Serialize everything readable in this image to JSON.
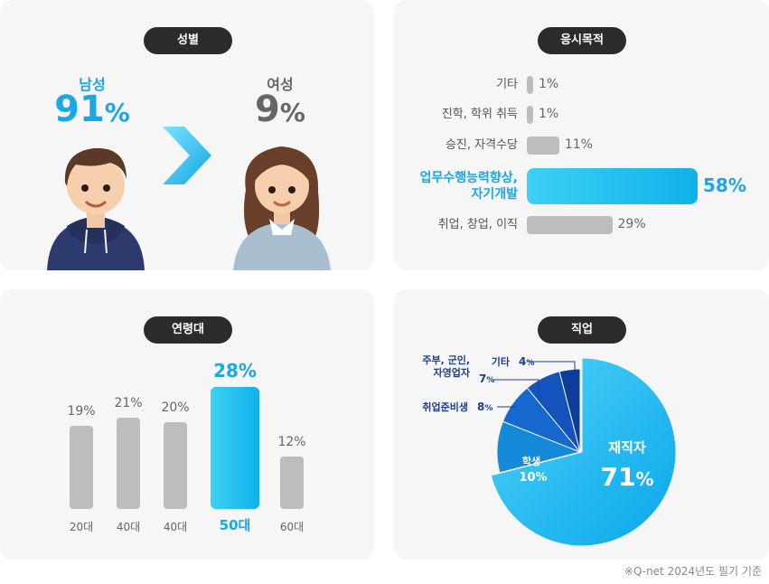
{
  "panels": {
    "gender": {
      "title": "성별",
      "male_label": "남성",
      "male_value": "91",
      "female_label": "여성",
      "female_value": "9",
      "unit": "%",
      "arrow_icon": "chevron-right-icon"
    },
    "purpose": {
      "title": "응시목적"
    },
    "age": {
      "title": "연령대"
    },
    "job": {
      "title": "직업"
    }
  },
  "footnote": "※Q-net 2024년도 필기 기준",
  "chart_data": [
    {
      "type": "bar",
      "orientation": "horizontal",
      "title": "응시목적",
      "categories": [
        "기타",
        "진학, 학위 취득",
        "승진, 자격수당",
        "업무수행능력향상, 자기개발",
        "취업, 창업, 이직"
      ],
      "category_lines": [
        [
          "기타"
        ],
        [
          "진학, 학위 취득"
        ],
        [
          "승진, 자격수당"
        ],
        [
          "업무수행능력향상,",
          "자기개발"
        ],
        [
          "취업, 창업, 이직"
        ]
      ],
      "values": [
        1,
        1,
        11,
        58,
        29
      ],
      "labels": [
        "1%",
        "1%",
        "11%",
        "58%",
        "29%"
      ],
      "highlight_index": 3
    },
    {
      "type": "bar",
      "orientation": "vertical",
      "title": "연령대",
      "categories": [
        "20대",
        "40대",
        "40대",
        "50대",
        "60대"
      ],
      "values": [
        19,
        21,
        20,
        28,
        12
      ],
      "labels": [
        "19%",
        "21%",
        "20%",
        "28%",
        "12%"
      ],
      "highlight_index": 3
    },
    {
      "type": "pie",
      "title": "직업",
      "slices": [
        {
          "label": "재직자",
          "value": 71,
          "display": "71%",
          "color": "#1ab4ee"
        },
        {
          "label": "학생",
          "value": 10,
          "display": "10%",
          "color": "#148ad8"
        },
        {
          "label": "취업준비생",
          "value": 8,
          "display": "8%",
          "color": "#1668cf"
        },
        {
          "label": "주부, 군인, 자영업자",
          "value": 7,
          "display": "7%",
          "color": "#1453bd"
        },
        {
          "label": "기타",
          "value": 4,
          "display": "4%",
          "color": "#0d3d9a"
        }
      ],
      "outer_labels": [
        {
          "lines": [
            "기타"
          ],
          "value": "4",
          "unit": "%"
        },
        {
          "lines": [
            "주부, 군인,",
            "자영업자"
          ],
          "value": "7",
          "unit": "%"
        },
        {
          "lines": [
            "취업준비생"
          ],
          "value": "8",
          "unit": "%"
        }
      ]
    }
  ],
  "colors": {
    "accent": "#1aa7e6",
    "bar_grey": "#bdbdbd",
    "pill": "#2b2b2b",
    "panel_bg": "#f6f6f6"
  }
}
